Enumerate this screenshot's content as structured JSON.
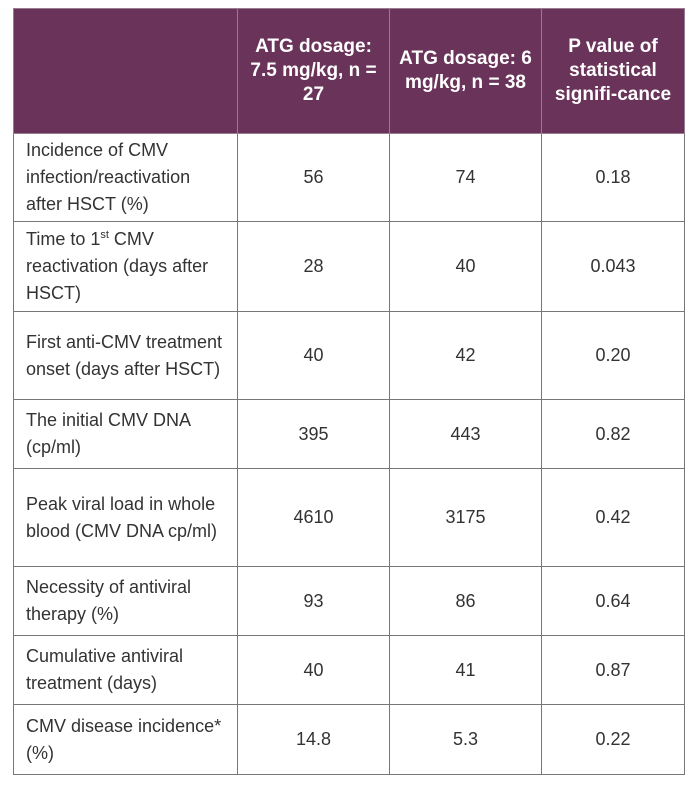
{
  "table": {
    "headers": [
      "",
      "ATG dosage: 7.5 mg/kg, n = 27",
      "ATG dosage: 6 mg/kg, n = 38",
      "P value of statistical signifi-cance"
    ],
    "rows": [
      {
        "label_a": "Incidence of CMV infection/reactivation after HSCT (%)",
        "sup": "",
        "label_b": "",
        "v1": "56",
        "v2": "74",
        "p": "0.18"
      },
      {
        "label_a": "Time to 1",
        "sup": "st",
        "label_b": " CMV reactivation (days after HSCT)",
        "v1": "28",
        "v2": "40",
        "p": "0.043"
      },
      {
        "label_a": "First anti-CMV treatment onset (days after HSCT)",
        "sup": "",
        "label_b": "",
        "v1": "40",
        "v2": "42",
        "p": "0.20"
      },
      {
        "label_a": "The initial CMV DNA (cp/ml)",
        "sup": "",
        "label_b": "",
        "v1": "395",
        "v2": "443",
        "p": "0.82"
      },
      {
        "label_a": "Peak viral load in whole blood (CMV DNA cp/ml)",
        "sup": "",
        "label_b": "",
        "v1": "4610",
        "v2": "3175",
        "p": "0.42"
      },
      {
        "label_a": "Necessity of antiviral therapy (%)",
        "sup": "",
        "label_b": "",
        "v1": "93",
        "v2": "86",
        "p": "0.64"
      },
      {
        "label_a": "Cumulative antiviral treatment (days)",
        "sup": "",
        "label_b": "",
        "v1": "40",
        "v2": "41",
        "p": "0.87"
      },
      {
        "label_a": "CMV disease incidence* (%)",
        "sup": "",
        "label_b": "",
        "v1": "14.8",
        "v2": "5.3",
        "p": "0.22"
      }
    ]
  },
  "colors": {
    "header_bg": "#6a3359",
    "header_text": "#ffffff",
    "body_text": "#333333",
    "border": "#777777"
  }
}
